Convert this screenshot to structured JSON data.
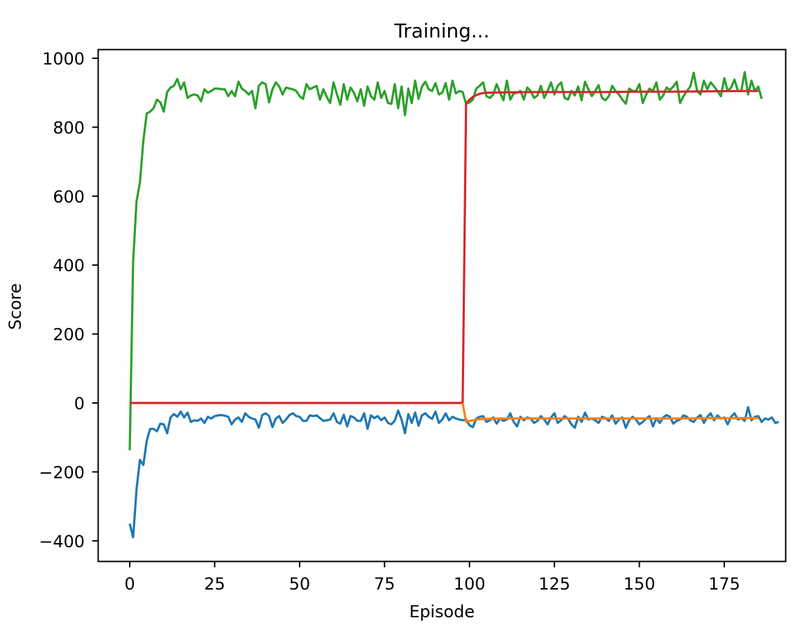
{
  "chart_data": {
    "type": "line",
    "title": "Training...",
    "xlabel": "Episode",
    "ylabel": "Score",
    "xlim": [
      -9.3,
      193.3
    ],
    "ylim": [
      -456,
      1026
    ],
    "xticks": [
      0,
      25,
      50,
      75,
      100,
      125,
      150,
      175
    ],
    "yticks": [
      -400,
      -200,
      0,
      200,
      400,
      600,
      800,
      1000
    ],
    "xtick_labels": [
      "0",
      "25",
      "50",
      "75",
      "100",
      "125",
      "150",
      "175"
    ],
    "ytick_labels": [
      "−400",
      "−200",
      "0",
      "200",
      "400",
      "600",
      "800",
      "1000"
    ],
    "grid": false,
    "legend": null,
    "series": [
      {
        "name": "episode_score_blue",
        "color": "#1f77b4",
        "values": [
          -350,
          -390,
          -250,
          -165,
          -180,
          -110,
          -75,
          -75,
          -82,
          -60,
          -62,
          -88,
          -42,
          -32,
          -40,
          -25,
          -42,
          -28,
          -55,
          -50,
          -52,
          -45,
          -58,
          -40,
          -45,
          -38,
          -36,
          -35,
          -37,
          -40,
          -62,
          -48,
          -42,
          -55,
          -30,
          -40,
          -45,
          -48,
          -72,
          -35,
          -30,
          -38,
          -70,
          -45,
          -38,
          -58,
          -48,
          -35,
          -30,
          -38,
          -40,
          -52,
          -52,
          -36,
          -38,
          -36,
          -44,
          -52,
          -50,
          -48,
          -30,
          -55,
          -60,
          -34,
          -68,
          -38,
          -42,
          -52,
          -52,
          -30,
          -75,
          -36,
          -44,
          -38,
          -50,
          -42,
          -58,
          -62,
          -52,
          -22,
          -48,
          -88,
          -32,
          -58,
          -28,
          -66,
          -36,
          -30,
          -40,
          -46,
          -25,
          -58,
          -48,
          -30,
          -50,
          -40,
          -45,
          -48,
          -50,
          -48,
          -65,
          -70,
          -45,
          -40,
          -38,
          -55,
          -50,
          -42,
          -60,
          -45,
          -52,
          -48,
          -30,
          -55,
          -68,
          -40,
          -50,
          -42,
          -45,
          -58,
          -52,
          -38,
          -48,
          -62,
          -42,
          -30,
          -58,
          -50,
          -38,
          -45,
          -62,
          -72,
          -40,
          -55,
          -28,
          -48,
          -45,
          -50,
          -58,
          -40,
          -44,
          -52,
          -36,
          -60,
          -48,
          -42,
          -72,
          -50,
          -40,
          -48,
          -62,
          -55,
          -45,
          -38,
          -68,
          -44,
          -58,
          -42,
          -35,
          -40,
          -60,
          -52,
          -48,
          -36,
          -40,
          -50,
          -55,
          -42,
          -35,
          -58,
          -40,
          -30,
          -50,
          -36,
          -45,
          -42,
          -62,
          -40,
          -30,
          -48,
          -44,
          -52,
          -12,
          -50,
          -40,
          -38,
          -55,
          -45,
          -48,
          -42,
          -58,
          -55
        ],
        "note": "approximate per-episode score, episodes 0-185"
      },
      {
        "name": "episode_score_green",
        "color": "#2ca02c",
        "values": [
          -137,
          410,
          585,
          640,
          760,
          840,
          845,
          855,
          880,
          872,
          845,
          902,
          915,
          920,
          940,
          910,
          930,
          885,
          892,
          895,
          892,
          875,
          910,
          900,
          905,
          912,
          912,
          910,
          910,
          890,
          905,
          890,
          932,
          912,
          905,
          895,
          905,
          855,
          920,
          930,
          925,
          872,
          910,
          930,
          918,
          895,
          915,
          912,
          910,
          905,
          890,
          882,
          925,
          910,
          915,
          920,
          880,
          910,
          888,
          870,
          930,
          895,
          865,
          925,
          880,
          915,
          900,
          875,
          910,
          862,
          918,
          890,
          880,
          930,
          885,
          905,
          870,
          868,
          925,
          855,
          918,
          835,
          912,
          870,
          935,
          882,
          918,
          932,
          910,
          905,
          928,
          895,
          900,
          928,
          880,
          935,
          898,
          905,
          902,
          868,
          872,
          880,
          912,
          920,
          930,
          890,
          885,
          895,
          925,
          900,
          878,
          935,
          880,
          898,
          900,
          905,
          880,
          915,
          905,
          885,
          892,
          920,
          885,
          905,
          930,
          895,
          920,
          930,
          885,
          880,
          905,
          892,
          918,
          878,
          932,
          910,
          890,
          905,
          922,
          885,
          878,
          890,
          920,
          905,
          895,
          880,
          868,
          912,
          905,
          905,
          925,
          870,
          895,
          912,
          905,
          930,
          880,
          892,
          915,
          908,
          918,
          932,
          870,
          890,
          905,
          918,
          958,
          905,
          895,
          935,
          910,
          930,
          918,
          905,
          890,
          942,
          905,
          915,
          938,
          905,
          905,
          960,
          895,
          935,
          905,
          918,
          882
        ],
        "note": "approximate per-episode score, episodes 0-185"
      },
      {
        "name": "moving_average_red",
        "color": "#d62728",
        "x_start": 0,
        "description": "0 for episodes 0-98, jumps to ~870 at 99, rising to ~905 by 185",
        "values_sparse": [
          [
            0,
            0
          ],
          [
            98,
            0
          ],
          [
            99,
            868
          ],
          [
            100,
            880
          ],
          [
            101,
            888
          ],
          [
            102,
            893
          ],
          [
            103,
            897
          ],
          [
            104,
            899
          ],
          [
            105,
            900
          ],
          [
            110,
            901
          ],
          [
            120,
            902
          ],
          [
            130,
            902
          ],
          [
            140,
            902
          ],
          [
            150,
            903
          ],
          [
            160,
            903
          ],
          [
            170,
            904
          ],
          [
            180,
            905
          ],
          [
            185,
            905
          ]
        ]
      },
      {
        "name": "moving_average_orange",
        "color": "#ff7f0e",
        "description": "starts at episode 98 (~0), drops to ~-55 at 99, rises to ~-45",
        "values_sparse": [
          [
            98,
            0
          ],
          [
            99,
            -55
          ],
          [
            100,
            -52
          ],
          [
            101,
            -50
          ],
          [
            102,
            -48
          ],
          [
            103,
            -47
          ],
          [
            105,
            -46
          ],
          [
            110,
            -45
          ],
          [
            120,
            -45
          ],
          [
            130,
            -45
          ],
          [
            140,
            -45
          ],
          [
            150,
            -45
          ],
          [
            160,
            -45
          ],
          [
            170,
            -44
          ],
          [
            180,
            -44
          ],
          [
            185,
            -44
          ]
        ]
      }
    ]
  }
}
